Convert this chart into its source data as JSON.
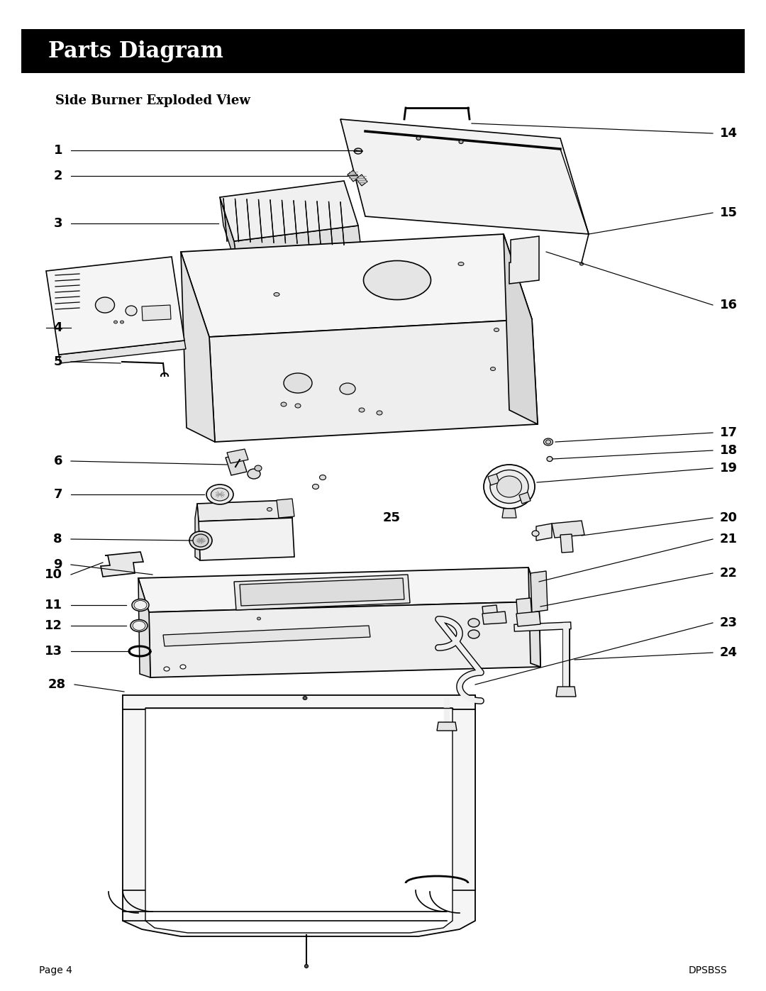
{
  "title": "Parts Diagram",
  "subtitle": "Side Burner Exploded View",
  "footer_left": "Page 4",
  "footer_right": "DPSBSS",
  "bg": "#ffffff",
  "title_bg": "#000000",
  "title_fg": "#ffffff"
}
